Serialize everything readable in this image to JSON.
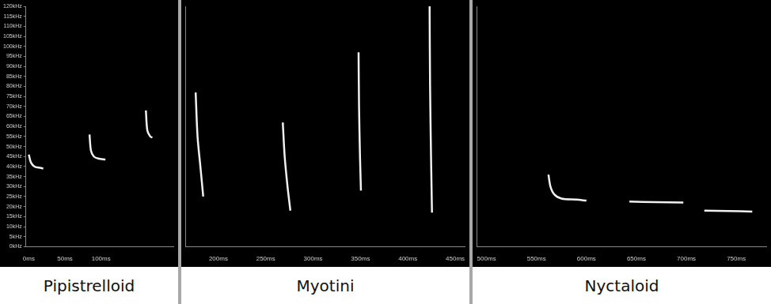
{
  "chart_data": [
    {
      "type": "line",
      "title": "Pipistrelloid",
      "grid": false,
      "xlim": [
        -4,
        200
      ],
      "xticks": [
        {
          "value": 0,
          "label": "0ms"
        },
        {
          "value": 50,
          "label": "50ms"
        },
        {
          "value": 100,
          "label": "100ms"
        }
      ],
      "ylim": [
        0,
        120
      ],
      "yticks": [
        {
          "value": 0,
          "label": "0kHz"
        },
        {
          "value": 5,
          "label": "5kHz"
        },
        {
          "value": 10,
          "label": "10kHz"
        },
        {
          "value": 15,
          "label": "15kHz"
        },
        {
          "value": 20,
          "label": "20kHz"
        },
        {
          "value": 25,
          "label": "25kHz"
        },
        {
          "value": 30,
          "label": "30kHz"
        },
        {
          "value": 35,
          "label": "35kHz"
        },
        {
          "value": 40,
          "label": "40kHz"
        },
        {
          "value": 45,
          "label": "45kHz"
        },
        {
          "value": 50,
          "label": "50kHz"
        },
        {
          "value": 55,
          "label": "55kHz"
        },
        {
          "value": 60,
          "label": "60kHz"
        },
        {
          "value": 65,
          "label": "65kHz"
        },
        {
          "value": 70,
          "label": "70kHz"
        },
        {
          "value": 75,
          "label": "75kHz"
        },
        {
          "value": 80,
          "label": "80kHz"
        },
        {
          "value": 85,
          "label": "85kHz"
        },
        {
          "value": 90,
          "label": "90kHz"
        },
        {
          "value": 95,
          "label": "95kHz"
        },
        {
          "value": 100,
          "label": "100kHz"
        },
        {
          "value": 105,
          "label": "105kHz"
        },
        {
          "value": 110,
          "label": "110kHz"
        },
        {
          "value": 115,
          "label": "115kHz"
        },
        {
          "value": 120,
          "label": "120kHz"
        }
      ],
      "series": [
        {
          "color": "#f0f0f0",
          "x": [
            0,
            3,
            8,
            14,
            20
          ],
          "values": [
            46,
            42,
            40,
            39.5,
            39
          ]
        },
        {
          "color": "#f0f0f0",
          "x": [
            84,
            86,
            90,
            96,
            106
          ],
          "values": [
            56,
            48,
            45,
            44,
            43.5
          ]
        },
        {
          "color": "#f0f0f0",
          "x": [
            162,
            164,
            168,
            171
          ],
          "values": [
            68,
            58,
            55,
            54.5
          ]
        }
      ]
    },
    {
      "type": "line",
      "title": "Myotini",
      "grid": false,
      "tick_labels": "x",
      "xlim": [
        165,
        460
      ],
      "xticks": [
        {
          "value": 200,
          "label": "200ms"
        },
        {
          "value": 250,
          "label": "250ms"
        },
        {
          "value": 300,
          "label": "300ms"
        },
        {
          "value": 350,
          "label": "350ms"
        },
        {
          "value": 400,
          "label": "400ms"
        },
        {
          "value": 450,
          "label": "450ms"
        }
      ],
      "ylim": [
        0,
        120
      ],
      "series": [
        {
          "color": "#f0f0f0",
          "x": [
            176,
            178,
            181,
            184
          ],
          "values": [
            77,
            55,
            40,
            25
          ]
        },
        {
          "color": "#f0f0f0",
          "x": [
            268,
            270,
            273,
            276
          ],
          "values": [
            62,
            45,
            30,
            18
          ]
        },
        {
          "color": "#f0f0f0",
          "x": [
            348,
            348.5,
            349.5,
            350.5
          ],
          "values": [
            97,
            70,
            45,
            28
          ]
        },
        {
          "color": "#f0f0f0",
          "x": [
            423,
            423.5,
            424.5,
            425.5
          ],
          "values": [
            120,
            80,
            45,
            17
          ]
        }
      ]
    },
    {
      "type": "line",
      "title": "Nyctaloid",
      "grid": false,
      "tick_labels": "x",
      "xlim": [
        490,
        780
      ],
      "xticks": [
        {
          "value": 500,
          "label": "500ms"
        },
        {
          "value": 550,
          "label": "550ms"
        },
        {
          "value": 600,
          "label": "600ms"
        },
        {
          "value": 650,
          "label": "650ms"
        },
        {
          "value": 700,
          "label": "700ms"
        },
        {
          "value": 750,
          "label": "750ms"
        }
      ],
      "ylim": [
        0,
        120
      ],
      "series": [
        {
          "color": "#f0f0f0",
          "x": [
            562,
            564,
            568,
            575,
            590,
            600
          ],
          "values": [
            36,
            30,
            26,
            24,
            23.5,
            23
          ]
        },
        {
          "color": "#f0f0f0",
          "x": [
            643,
            670,
            697
          ],
          "values": [
            22.5,
            22.2,
            22
          ]
        },
        {
          "color": "#f0f0f0",
          "x": [
            718,
            742,
            766
          ],
          "values": [
            18,
            17.8,
            17.5
          ]
        }
      ]
    }
  ]
}
